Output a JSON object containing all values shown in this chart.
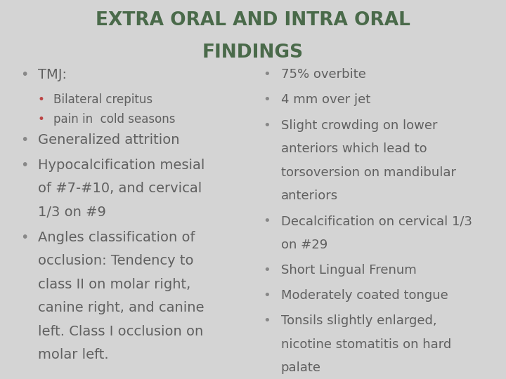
{
  "title_line1": "EXTRA ORAL AND INTRA ORAL",
  "title_line2": "FINDINGS",
  "title_color": "#4a6a4a",
  "background_color": "#d4d4d4",
  "body_color": "#606060",
  "sub_bullet_color": "#bb4444",
  "bullet_color": "#888888",
  "left_col": [
    {
      "level": 0,
      "text": "TMJ:",
      "size": 14
    },
    {
      "level": 1,
      "text": "Bilateral crepitus",
      "size": 12
    },
    {
      "level": 1,
      "text": "pain in  cold seasons",
      "size": 12
    },
    {
      "level": 0,
      "text": "Generalized attrition",
      "size": 14
    },
    {
      "level": 0,
      "text": "Hypocalcification mesial\nof #7-#10, and cervical\n1/3 on #9",
      "size": 14
    },
    {
      "level": 0,
      "text": "Angles classification of\nocclusion: Tendency to\nclass II on molar right,\ncanine right, and canine\nleft. Class I occlusion on\nmolar left.",
      "size": 14
    }
  ],
  "right_col": [
    {
      "text": "75% overbite",
      "size": 13
    },
    {
      "text": "4 mm over jet",
      "size": 13
    },
    {
      "text": "Slight crowding on lower\nanteriors which lead to\ntorsoversion on mandibular\nanteriors",
      "size": 13
    },
    {
      "text": "Decalcification on cervical 1/3\non #29",
      "size": 13
    },
    {
      "text": "Short Lingual Frenum",
      "size": 13
    },
    {
      "text": "Moderately coated tongue",
      "size": 13
    },
    {
      "text": "Tonsils slightly enlarged,\nnicotine stomatitis on hard\npalate",
      "size": 13
    }
  ],
  "title_size": 19,
  "fig_width": 7.2,
  "fig_height": 5.4,
  "dpi": 100
}
